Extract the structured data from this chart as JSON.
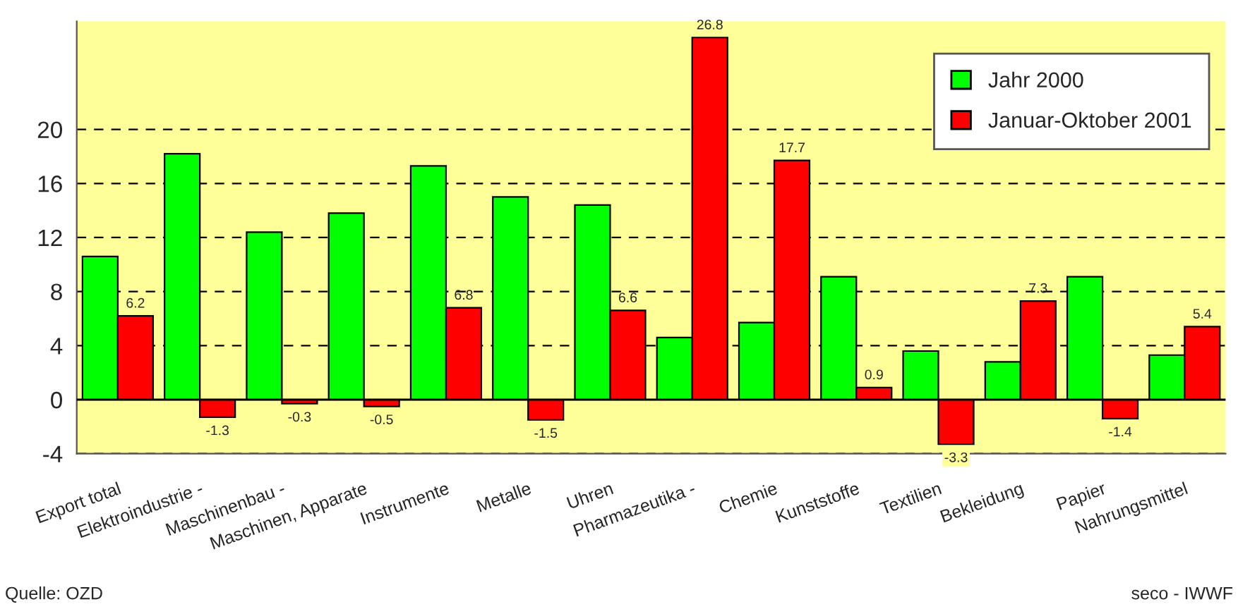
{
  "chart_data": {
    "type": "bar",
    "categories": [
      "Export total",
      "Elektroindustrie -",
      "Maschinenbau -",
      "Maschinen, Apparate",
      "Instrumente",
      "Metalle",
      "Uhren",
      "Pharmazeutika -",
      "Chemie",
      "Kunststoffe",
      "Textilien",
      "Bekleidung",
      "Papier",
      "Nahrungsmittel"
    ],
    "series": [
      {
        "name": "Jahr 2000",
        "color": "#00ff00",
        "values": [
          10.6,
          18.2,
          12.4,
          13.8,
          17.3,
          15.0,
          14.4,
          4.6,
          5.7,
          9.1,
          3.6,
          2.8,
          9.1,
          3.3
        ]
      },
      {
        "name": "Januar-Oktober 2001",
        "color": "#ff0000",
        "values": [
          6.2,
          -1.3,
          -0.3,
          -0.5,
          6.8,
          -1.5,
          6.6,
          26.8,
          17.7,
          0.9,
          -3.3,
          7.3,
          -1.4,
          5.4
        ],
        "value_labels": [
          "6.2",
          "-1.3",
          "-0.3",
          "-0.5",
          "6.8",
          "-1.5",
          "6.6",
          "26.8",
          "17.7",
          "0.9",
          "-3.3",
          "7.3",
          "-1.4",
          "5.4"
        ]
      }
    ],
    "ylim": [
      -4,
      28
    ],
    "yticks": [
      -4,
      0,
      4,
      8,
      12,
      16,
      20
    ],
    "grid": "y",
    "legend": "top right",
    "annotations": [
      "Quelle: OZD",
      "seco - IWWF"
    ]
  }
}
